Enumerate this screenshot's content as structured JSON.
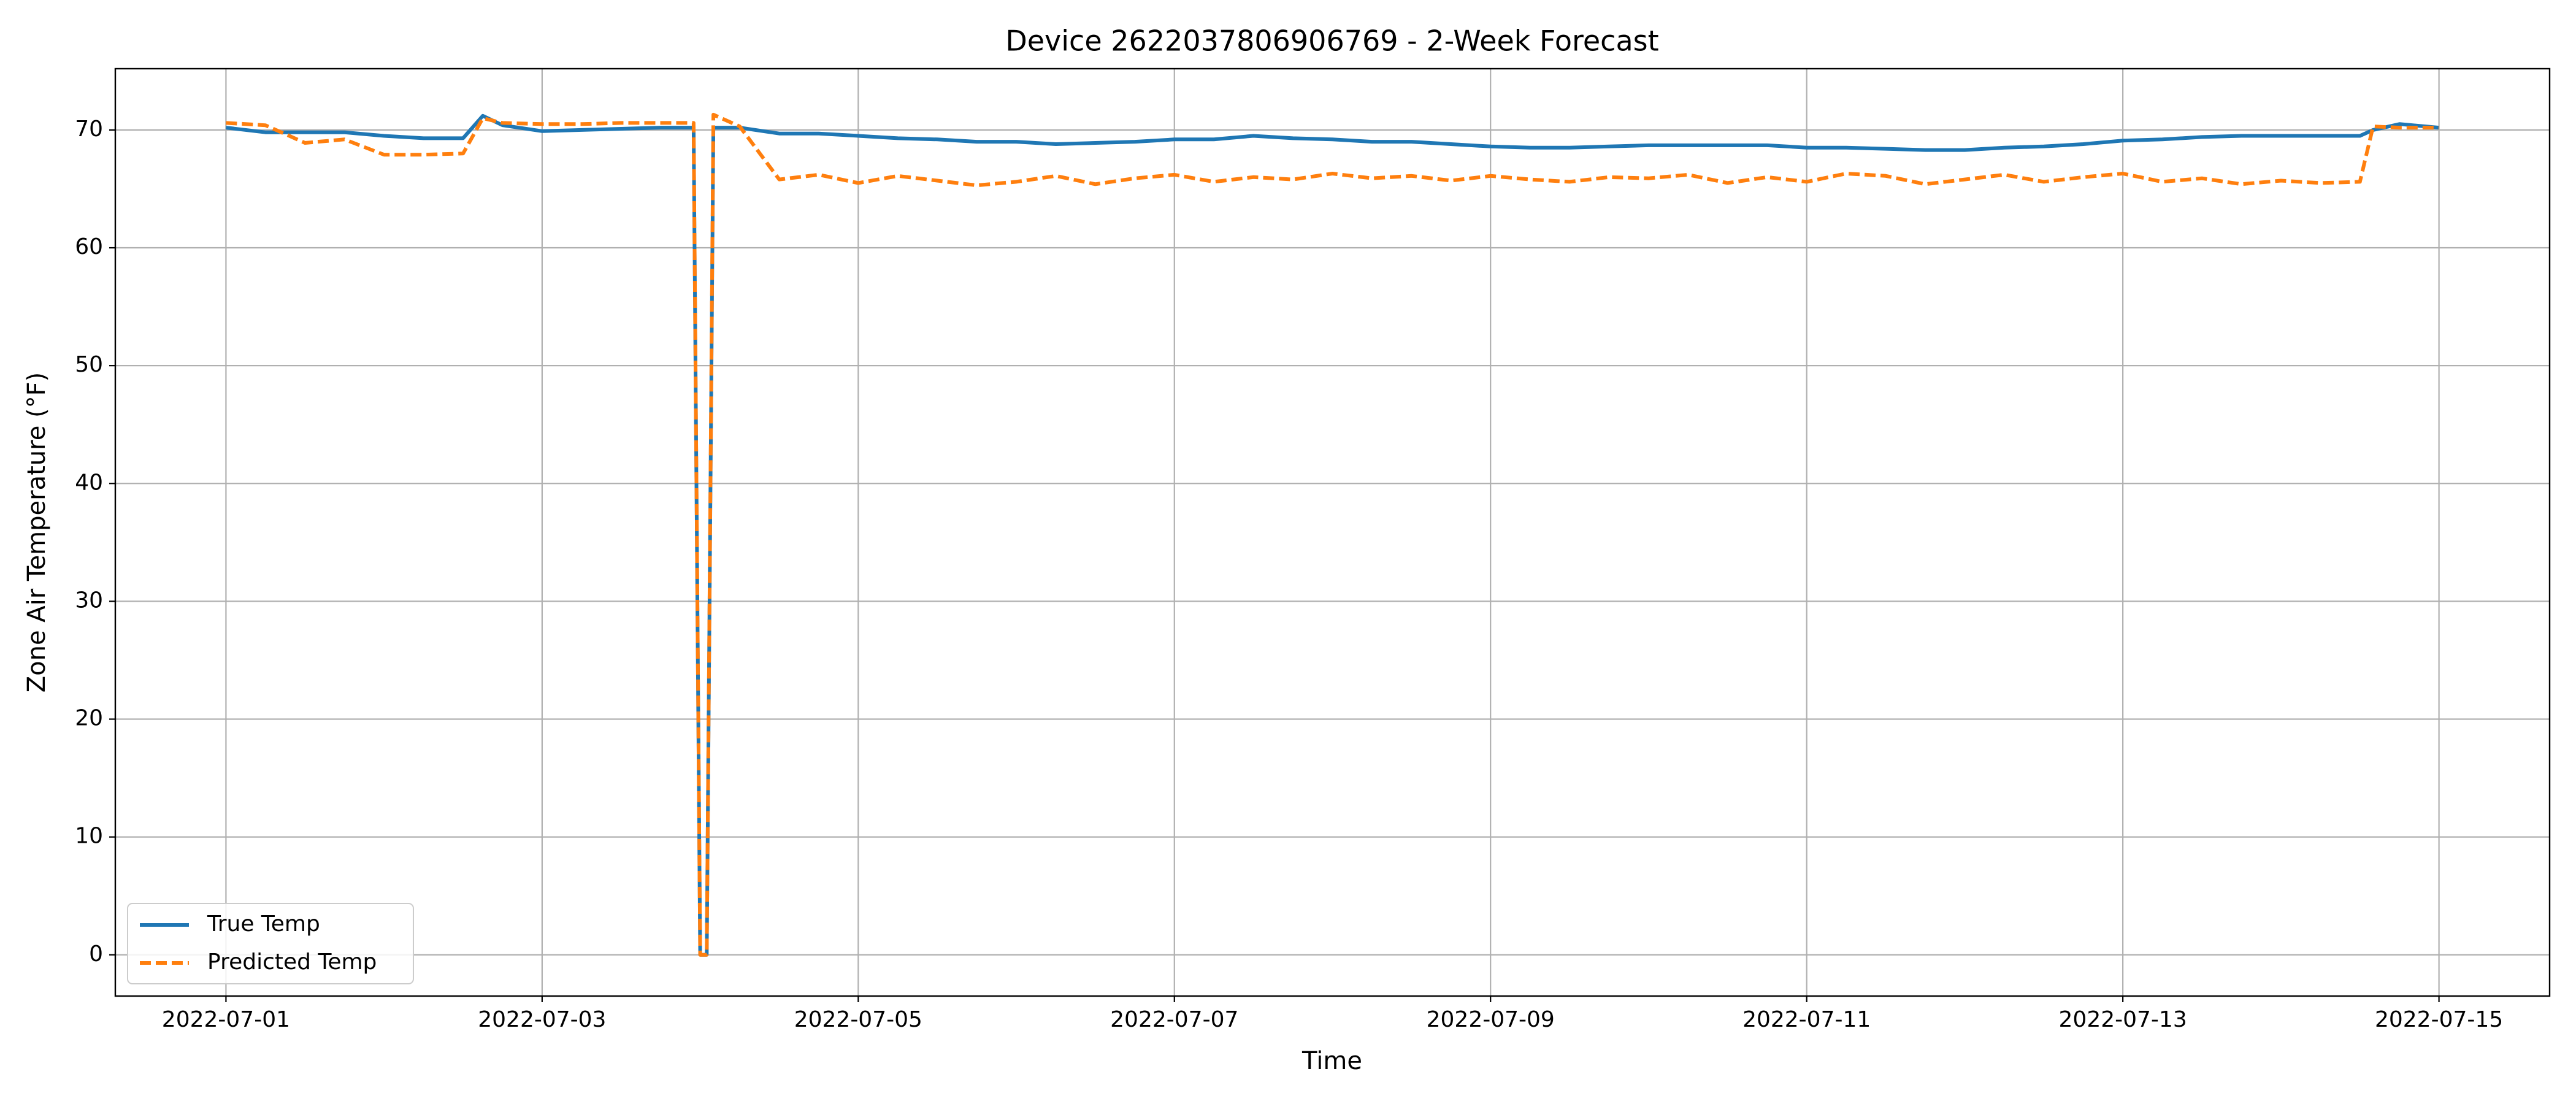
{
  "chart_data": {
    "type": "line",
    "title": "Device 2622037806906769 - 2-Week Forecast",
    "xlabel": "Time",
    "ylabel": "Zone Air Temperature (°F)",
    "x": [
      "2022-07-01T00:00",
      "2022-07-01T06:00",
      "2022-07-01T12:00",
      "2022-07-01T18:00",
      "2022-07-02T00:00",
      "2022-07-02T06:00",
      "2022-07-02T12:00",
      "2022-07-02T15:00",
      "2022-07-02T18:00",
      "2022-07-03T00:00",
      "2022-07-03T06:00",
      "2022-07-03T12:00",
      "2022-07-03T18:00",
      "2022-07-03T23:00",
      "2022-07-04T00:00",
      "2022-07-04T01:00",
      "2022-07-04T02:00",
      "2022-07-04T06:00",
      "2022-07-04T12:00",
      "2022-07-04T18:00",
      "2022-07-05T00:00",
      "2022-07-05T06:00",
      "2022-07-05T12:00",
      "2022-07-05T18:00",
      "2022-07-06T00:00",
      "2022-07-06T06:00",
      "2022-07-06T12:00",
      "2022-07-06T18:00",
      "2022-07-07T00:00",
      "2022-07-07T06:00",
      "2022-07-07T12:00",
      "2022-07-07T18:00",
      "2022-07-08T00:00",
      "2022-07-08T06:00",
      "2022-07-08T12:00",
      "2022-07-08T18:00",
      "2022-07-09T00:00",
      "2022-07-09T06:00",
      "2022-07-09T12:00",
      "2022-07-09T18:00",
      "2022-07-10T00:00",
      "2022-07-10T06:00",
      "2022-07-10T12:00",
      "2022-07-10T18:00",
      "2022-07-11T00:00",
      "2022-07-11T06:00",
      "2022-07-11T12:00",
      "2022-07-11T18:00",
      "2022-07-12T00:00",
      "2022-07-12T06:00",
      "2022-07-12T12:00",
      "2022-07-12T18:00",
      "2022-07-13T00:00",
      "2022-07-13T06:00",
      "2022-07-13T12:00",
      "2022-07-13T18:00",
      "2022-07-14T00:00",
      "2022-07-14T06:00",
      "2022-07-14T12:00",
      "2022-07-14T14:00",
      "2022-07-14T18:00",
      "2022-07-15T00:00"
    ],
    "series": [
      {
        "name": "True Temp",
        "color": "#1f77b4",
        "dash": "solid",
        "values": [
          70.2,
          69.8,
          69.8,
          69.8,
          69.5,
          69.3,
          69.3,
          71.2,
          70.4,
          69.9,
          70.0,
          70.1,
          70.2,
          70.2,
          0,
          0,
          70.2,
          70.2,
          69.7,
          69.7,
          69.5,
          69.3,
          69.2,
          69.0,
          69.0,
          68.8,
          68.9,
          69.0,
          69.2,
          69.2,
          69.5,
          69.3,
          69.2,
          69.0,
          69.0,
          68.8,
          68.6,
          68.5,
          68.5,
          68.6,
          68.7,
          68.7,
          68.7,
          68.7,
          68.5,
          68.5,
          68.4,
          68.3,
          68.3,
          68.5,
          68.6,
          68.8,
          69.1,
          69.2,
          69.4,
          69.5,
          69.5,
          69.5,
          69.5,
          70.0,
          70.5,
          70.2
        ]
      },
      {
        "name": "Predicted Temp",
        "color": "#ff7f0e",
        "dash": "dashed",
        "values": [
          70.6,
          70.4,
          68.9,
          69.2,
          67.9,
          67.9,
          68.0,
          71.0,
          70.6,
          70.5,
          70.5,
          70.6,
          70.6,
          70.6,
          0,
          0,
          71.3,
          70.3,
          65.8,
          66.2,
          65.5,
          66.1,
          65.7,
          65.3,
          65.6,
          66.1,
          65.4,
          65.9,
          66.2,
          65.6,
          66.0,
          65.8,
          66.3,
          65.9,
          66.1,
          65.7,
          66.1,
          65.8,
          65.6,
          66.0,
          65.9,
          66.2,
          65.5,
          66.0,
          65.6,
          66.3,
          66.1,
          65.4,
          65.8,
          66.2,
          65.6,
          66.0,
          66.3,
          65.6,
          65.9,
          65.4,
          65.7,
          65.5,
          65.6,
          70.3,
          70.2,
          70.2
        ]
      }
    ],
    "xlim": [
      "2022-06-30T07:12",
      "2022-07-15T16:48"
    ],
    "xticks": [
      "2022-07-01",
      "2022-07-03",
      "2022-07-05",
      "2022-07-07",
      "2022-07-09",
      "2022-07-11",
      "2022-07-13",
      "2022-07-15"
    ],
    "ylim": [
      -3.5,
      75.2
    ],
    "yticks": [
      0,
      10,
      20,
      30,
      40,
      50,
      60,
      70
    ],
    "grid": true,
    "legend": "lower left"
  }
}
